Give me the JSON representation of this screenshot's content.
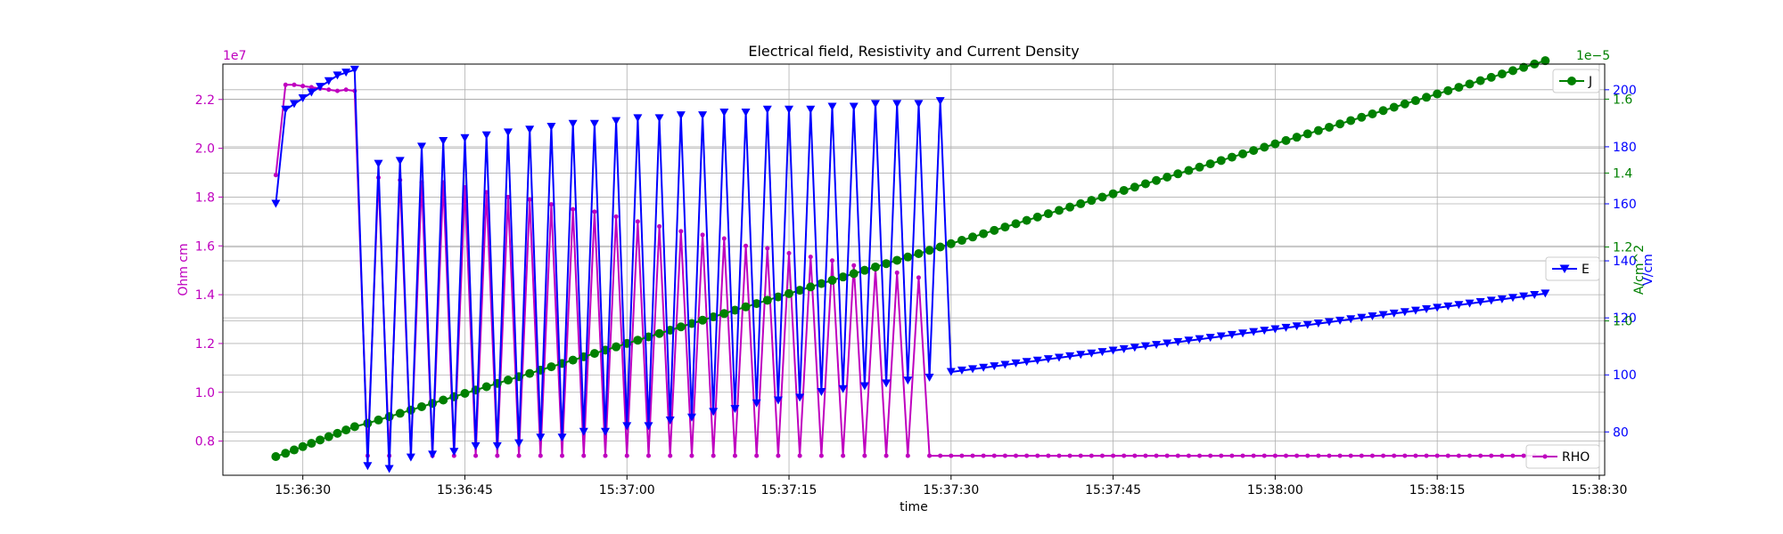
{
  "chart_data": {
    "type": "line",
    "title": "Electrical field, Resistivity and Current Density",
    "xlabel": "time",
    "x_ticks": [
      "15:36:30",
      "15:36:45",
      "15:37:00",
      "15:37:15",
      "15:37:30",
      "15:37:45",
      "15:38:00",
      "15:38:15",
      "15:38:30"
    ],
    "x_tick_seconds": [
      30,
      45,
      60,
      75,
      90,
      105,
      120,
      135,
      150
    ],
    "xlim": [
      22.6,
      150.5
    ],
    "grid": true,
    "axes": {
      "rho": {
        "label": "Ohm cm",
        "color": "#bf00bf",
        "multiplier": "1e7",
        "ylim": [
          0.66,
          2.345
        ],
        "ticks": [
          0.8,
          1.0,
          1.2,
          1.4,
          1.6,
          1.8,
          2.0,
          2.2
        ],
        "tick_labels": [
          "0.8",
          "1.0",
          "1.2",
          "1.4",
          "1.6",
          "1.8",
          "2.0",
          "2.2"
        ],
        "position": "left"
      },
      "e": {
        "label": "V/cm",
        "color": "#0000ff",
        "ylim": [
          64.8,
          209.0
        ],
        "ticks": [
          80,
          100,
          120,
          140,
          160,
          180,
          200
        ],
        "tick_labels": [
          "80",
          "100",
          "120",
          "140",
          "160",
          "180",
          "200"
        ],
        "position": "right"
      },
      "j": {
        "label": "A/cm^2",
        "color": "#008000",
        "multiplier": "1e−5",
        "ylim": [
          0.5825,
          1.6948
        ],
        "ticks": [
          1.0,
          1.2,
          1.4,
          1.6
        ],
        "tick_labels": [
          "1.0",
          "1.2",
          "1.4",
          "1.6"
        ],
        "position": "right"
      }
    },
    "series": [
      {
        "name": "RHO",
        "axis": "rho",
        "color": "#bf00bf",
        "marker": "point",
        "legend_position": "lower right",
        "x": [
          27.5,
          28.4,
          29.2,
          30,
          30.8,
          31.6,
          32.4,
          33.2,
          34,
          34.8,
          36,
          37,
          38,
          39,
          40,
          41,
          42,
          43,
          44,
          45,
          46,
          47,
          48,
          49,
          50,
          51,
          52,
          53,
          54,
          55,
          56,
          57,
          58,
          59,
          60,
          61,
          62,
          63,
          64,
          65,
          66,
          67,
          68,
          69,
          70,
          71,
          72,
          73,
          74,
          75,
          76,
          77,
          78,
          79,
          80,
          81,
          82,
          83,
          84,
          85,
          86,
          87,
          88,
          89,
          90,
          91,
          92,
          93,
          94,
          95,
          96,
          97,
          98,
          99,
          100,
          101,
          102,
          103,
          104,
          105,
          106,
          107,
          108,
          109,
          110,
          111,
          112,
          113,
          114,
          115,
          116,
          117,
          118,
          119,
          120,
          121,
          122,
          123,
          124,
          125,
          126,
          127,
          128,
          129,
          130,
          131,
          132,
          133,
          134,
          135,
          136,
          137,
          138,
          139,
          140,
          141,
          142,
          143,
          144,
          145
        ],
        "y": [
          1.89,
          2.26,
          2.26,
          2.255,
          2.25,
          2.245,
          2.24,
          2.235,
          2.24,
          2.235,
          0.74,
          1.88,
          0.74,
          1.87,
          0.74,
          1.86,
          0.74,
          1.86,
          0.74,
          1.84,
          0.74,
          1.82,
          0.74,
          1.8,
          0.74,
          1.79,
          0.74,
          1.77,
          0.74,
          1.75,
          0.74,
          1.74,
          0.74,
          1.72,
          0.74,
          1.7,
          0.74,
          1.68,
          0.74,
          1.66,
          0.74,
          1.645,
          0.74,
          1.63,
          0.74,
          1.6,
          0.74,
          1.59,
          0.74,
          1.57,
          0.74,
          1.555,
          0.74,
          1.54,
          0.74,
          1.52,
          0.74,
          1.505,
          0.74,
          1.49,
          0.74,
          1.47,
          0.74,
          0.74,
          0.74,
          0.74,
          0.74,
          0.74,
          0.74,
          0.74,
          0.74,
          0.74,
          0.74,
          0.74,
          0.74,
          0.74,
          0.74,
          0.74,
          0.74,
          0.74,
          0.74,
          0.74,
          0.74,
          0.74,
          0.74,
          0.74,
          0.74,
          0.74,
          0.74,
          0.74,
          0.74,
          0.74,
          0.74,
          0.74,
          0.74,
          0.74,
          0.74,
          0.74,
          0.74,
          0.74,
          0.74,
          0.74,
          0.74,
          0.74,
          0.74,
          0.74,
          0.74,
          0.74,
          0.74,
          0.74,
          0.74,
          0.74,
          0.74,
          0.74,
          0.74,
          0.74,
          0.74,
          0.74,
          0.74,
          0.74
        ]
      },
      {
        "name": "E",
        "axis": "e",
        "color": "#0000ff",
        "marker": "triangle-down",
        "legend_position": "center right",
        "x": [
          27.5,
          28.4,
          29.2,
          30,
          30.8,
          31.6,
          32.4,
          33.2,
          34,
          34.8,
          36,
          37,
          38,
          39,
          40,
          41,
          42,
          43,
          44,
          45,
          46,
          47,
          48,
          49,
          50,
          51,
          52,
          53,
          54,
          55,
          56,
          57,
          58,
          59,
          60,
          61,
          62,
          63,
          64,
          65,
          66,
          67,
          68,
          69,
          70,
          71,
          72,
          73,
          74,
          75,
          76,
          77,
          78,
          79,
          80,
          81,
          82,
          83,
          84,
          85,
          86,
          87,
          88,
          89,
          90,
          91,
          92,
          93,
          94,
          95,
          96,
          97,
          98,
          99,
          100,
          101,
          102,
          103,
          104,
          105,
          106,
          107,
          108,
          109,
          110,
          111,
          112,
          113,
          114,
          115,
          116,
          117,
          118,
          119,
          120,
          121,
          122,
          123,
          124,
          125,
          126,
          127,
          128,
          129,
          130,
          131,
          132,
          133,
          134,
          135,
          136,
          137,
          138,
          139,
          140,
          141,
          142,
          143,
          144,
          145
        ],
        "y": [
          160,
          193,
          195,
          197,
          199,
          201,
          203,
          205,
          206,
          207,
          68,
          174,
          67,
          175,
          71,
          180,
          72,
          182,
          73,
          183,
          75,
          184,
          75,
          185,
          76,
          186,
          78,
          187,
          78,
          188,
          80,
          188,
          80,
          189,
          82,
          190,
          82,
          190,
          84,
          191,
          85,
          191,
          87,
          192,
          88,
          192,
          90,
          193,
          91,
          193,
          92,
          193,
          94,
          194,
          95,
          194,
          96,
          195,
          97,
          195,
          98,
          195,
          99,
          196,
          101,
          101.5,
          102,
          102.5,
          103,
          103.5,
          104,
          104.5,
          105,
          105.5,
          106,
          106.5,
          107,
          107.5,
          108,
          108.5,
          109,
          109.5,
          110,
          110.5,
          111,
          111.5,
          112,
          112.5,
          113,
          113.5,
          114,
          114.5,
          115,
          115.5,
          116,
          116.5,
          117,
          117.5,
          118,
          118.5,
          119,
          119.5,
          120,
          120.5,
          121,
          121.5,
          122,
          122.5,
          123,
          123.5,
          124,
          124.5,
          125,
          125.5,
          126,
          126.5,
          127,
          127.5,
          128,
          128.5
        ]
      },
      {
        "name": "J",
        "axis": "j",
        "color": "#008000",
        "marker": "circle",
        "legend_position": "upper right",
        "x": [
          27.5,
          28.4,
          29.2,
          30,
          30.8,
          31.6,
          32.4,
          33.2,
          34,
          34.8,
          36,
          37,
          38,
          39,
          40,
          41,
          42,
          43,
          44,
          45,
          46,
          47,
          48,
          49,
          50,
          51,
          52,
          53,
          54,
          55,
          56,
          57,
          58,
          59,
          60,
          61,
          62,
          63,
          64,
          65,
          66,
          67,
          68,
          69,
          70,
          71,
          72,
          73,
          74,
          75,
          76,
          77,
          78,
          79,
          80,
          81,
          82,
          83,
          84,
          85,
          86,
          87,
          88,
          89,
          90,
          91,
          92,
          93,
          94,
          95,
          96,
          97,
          98,
          99,
          100,
          101,
          102,
          103,
          104,
          105,
          106,
          107,
          108,
          109,
          110,
          111,
          112,
          113,
          114,
          115,
          116,
          117,
          118,
          119,
          120,
          121,
          122,
          123,
          124,
          125,
          126,
          127,
          128,
          129,
          130,
          131,
          132,
          133,
          134,
          135,
          136,
          137,
          138,
          139,
          140,
          141,
          142,
          143,
          144,
          145
        ],
        "y": [
          0.633,
          0.642,
          0.651,
          0.66,
          0.669,
          0.678,
          0.687,
          0.696,
          0.705,
          0.714,
          0.723,
          0.732,
          0.741,
          0.75,
          0.759,
          0.768,
          0.777,
          0.786,
          0.795,
          0.804,
          0.813,
          0.822,
          0.831,
          0.84,
          0.849,
          0.858,
          0.867,
          0.876,
          0.885,
          0.894,
          0.903,
          0.912,
          0.921,
          0.93,
          0.939,
          0.948,
          0.957,
          0.966,
          0.975,
          0.984,
          0.993,
          1.002,
          1.011,
          1.02,
          1.029,
          1.038,
          1.047,
          1.056,
          1.065,
          1.074,
          1.083,
          1.092,
          1.101,
          1.11,
          1.119,
          1.128,
          1.137,
          1.146,
          1.155,
          1.164,
          1.173,
          1.182,
          1.191,
          1.2,
          1.209,
          1.218,
          1.227,
          1.236,
          1.245,
          1.254,
          1.263,
          1.272,
          1.281,
          1.29,
          1.299,
          1.308,
          1.317,
          1.326,
          1.335,
          1.344,
          1.353,
          1.362,
          1.371,
          1.38,
          1.389,
          1.398,
          1.407,
          1.416,
          1.425,
          1.434,
          1.443,
          1.452,
          1.461,
          1.47,
          1.479,
          1.488,
          1.497,
          1.506,
          1.515,
          1.524,
          1.533,
          1.542,
          1.551,
          1.56,
          1.569,
          1.578,
          1.587,
          1.596,
          1.605,
          1.614,
          1.623,
          1.632,
          1.641,
          1.65,
          1.659,
          1.668,
          1.677,
          1.686,
          1.695,
          1.704
        ]
      }
    ]
  }
}
